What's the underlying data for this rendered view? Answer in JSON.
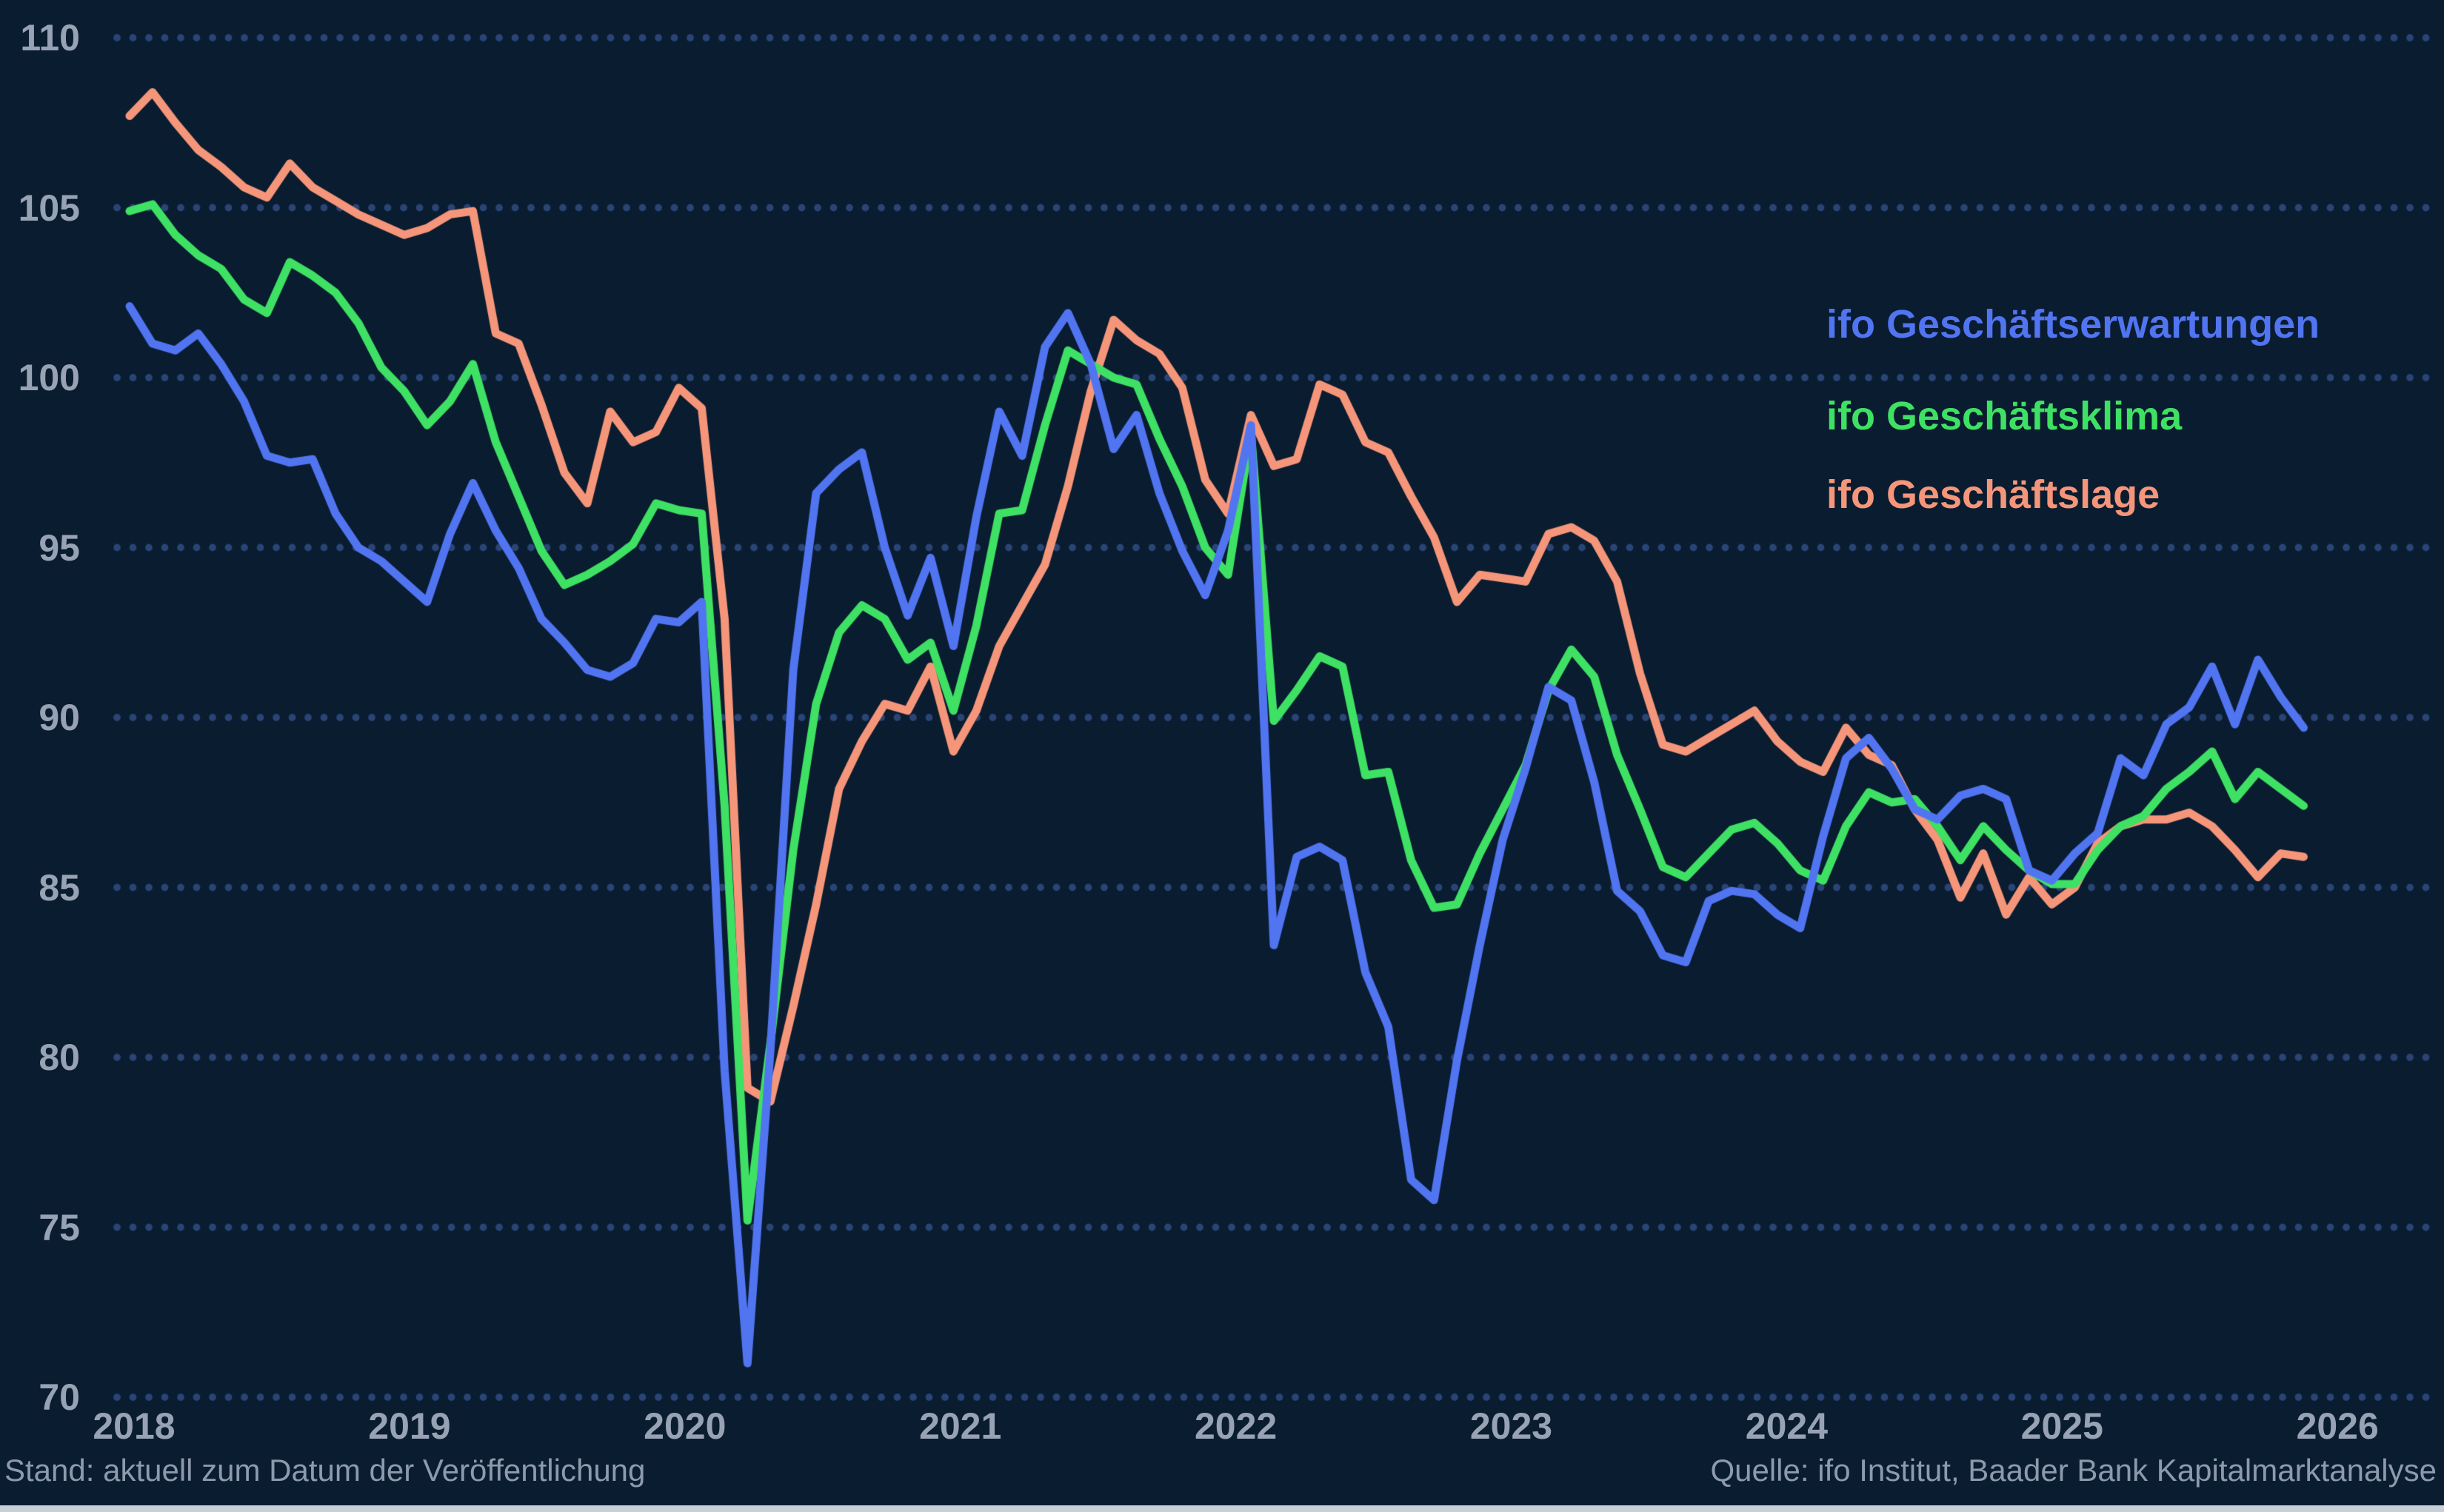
{
  "chart_data": {
    "type": "line",
    "title": "",
    "xlabel": "",
    "ylabel": "",
    "x_unit": "month",
    "start_month": "2018-01",
    "end_month": "2025-12",
    "x_tick_labels": [
      "2018",
      "2019",
      "2020",
      "2021",
      "2022",
      "2023",
      "2024",
      "2025",
      "2026"
    ],
    "y_ticks": [
      110,
      105,
      100,
      95,
      90,
      85,
      80,
      75,
      70
    ],
    "ylim": [
      70,
      110
    ],
    "grid": "dotted-horizontal",
    "legend_position": "upper-right",
    "series": [
      {
        "name": "ifo Geschäftserwartungen",
        "color": "#5174f1",
        "values": [
          102.1,
          101.0,
          100.8,
          101.3,
          100.4,
          99.3,
          97.7,
          97.5,
          97.6,
          96.0,
          95.0,
          94.6,
          94.0,
          93.4,
          95.4,
          96.9,
          95.5,
          94.4,
          92.9,
          92.2,
          91.4,
          91.2,
          91.6,
          92.9,
          92.8,
          93.4,
          79.6,
          71.0,
          80.2,
          91.4,
          96.6,
          97.3,
          97.8,
          95.0,
          93.0,
          94.7,
          92.1,
          95.9,
          99.0,
          97.7,
          100.9,
          101.9,
          100.4,
          97.9,
          98.9,
          96.6,
          94.9,
          93.6,
          95.5,
          98.6,
          83.3,
          85.9,
          86.2,
          85.8,
          82.5,
          80.9,
          76.4,
          75.8,
          79.9,
          83.3,
          86.4,
          88.5,
          90.9,
          90.5,
          88.1,
          84.9,
          84.3,
          83.0,
          82.8,
          84.6,
          84.9,
          84.8,
          84.2,
          83.8,
          86.5,
          88.8,
          89.4,
          88.5,
          87.3,
          87.0,
          87.7,
          87.9,
          87.6,
          85.5,
          85.2,
          86.0,
          86.6,
          88.8,
          88.3,
          89.8,
          90.3,
          91.5,
          89.8,
          91.7,
          90.6,
          89.7
        ]
      },
      {
        "name": "ifo Geschäftsklima",
        "color": "#3ee163",
        "values": [
          104.9,
          105.1,
          104.2,
          103.6,
          103.2,
          102.3,
          101.9,
          103.4,
          103.0,
          102.5,
          101.6,
          100.3,
          99.6,
          98.6,
          99.3,
          100.4,
          98.1,
          96.5,
          94.9,
          93.9,
          94.2,
          94.6,
          95.1,
          96.3,
          96.1,
          96.0,
          87.4,
          75.2,
          80.4,
          86.1,
          90.4,
          92.5,
          93.3,
          92.9,
          91.7,
          92.2,
          90.2,
          92.7,
          96.0,
          96.1,
          98.6,
          100.8,
          100.4,
          100.0,
          99.8,
          98.2,
          96.8,
          95.0,
          94.2,
          98.4,
          89.9,
          90.8,
          91.8,
          91.5,
          88.3,
          88.4,
          85.8,
          84.4,
          84.5,
          86.0,
          87.3,
          88.6,
          90.8,
          92.0,
          91.2,
          88.9,
          87.3,
          85.6,
          85.3,
          86.0,
          86.7,
          86.9,
          86.3,
          85.5,
          85.2,
          86.8,
          87.8,
          87.5,
          87.6,
          86.8,
          85.8,
          86.8,
          86.1,
          85.5,
          85.1,
          85.1,
          86.1,
          86.8,
          87.1,
          87.9,
          88.4,
          89.0,
          87.6,
          88.4,
          87.9,
          87.4
        ]
      },
      {
        "name": "ifo Geschäftslage",
        "color": "#f5967a",
        "values": [
          107.7,
          108.4,
          107.5,
          106.7,
          106.2,
          105.6,
          105.3,
          106.3,
          105.6,
          105.2,
          104.8,
          104.5,
          104.2,
          104.4,
          104.8,
          104.9,
          101.3,
          101.0,
          99.2,
          97.2,
          96.3,
          99.0,
          98.1,
          98.4,
          99.7,
          99.1,
          92.9,
          79.1,
          78.7,
          81.5,
          84.5,
          87.9,
          89.3,
          90.4,
          90.2,
          91.5,
          89.0,
          90.2,
          92.1,
          93.3,
          94.5,
          96.8,
          99.6,
          101.7,
          101.1,
          100.7,
          99.7,
          97.0,
          96.0,
          98.9,
          97.4,
          97.6,
          99.8,
          99.5,
          98.1,
          97.8,
          96.5,
          95.3,
          93.4,
          94.2,
          94.1,
          94.0,
          95.4,
          95.6,
          95.2,
          94.0,
          91.3,
          89.2,
          89.0,
          89.4,
          89.8,
          90.2,
          89.3,
          88.7,
          88.4,
          89.7,
          88.9,
          88.6,
          87.3,
          86.4,
          84.7,
          86.0,
          84.2,
          85.3,
          84.5,
          85.0,
          86.3,
          86.8,
          87.0,
          87.0,
          87.2,
          86.8,
          86.1,
          85.3,
          86.0,
          85.9
        ]
      }
    ]
  },
  "footer": {
    "left": "Stand: aktuell zum Datum der Veröffentlichung",
    "right": "Quelle: ifo Institut, Baader Bank Kapitalmarktanalyse"
  },
  "colors": {
    "background": "#0a1c30",
    "grid_dots": "#2a4475",
    "axis_labels": "#97a2b4",
    "footer_text": "#8d9aad",
    "bottom_strip": "#c9cfd6"
  }
}
